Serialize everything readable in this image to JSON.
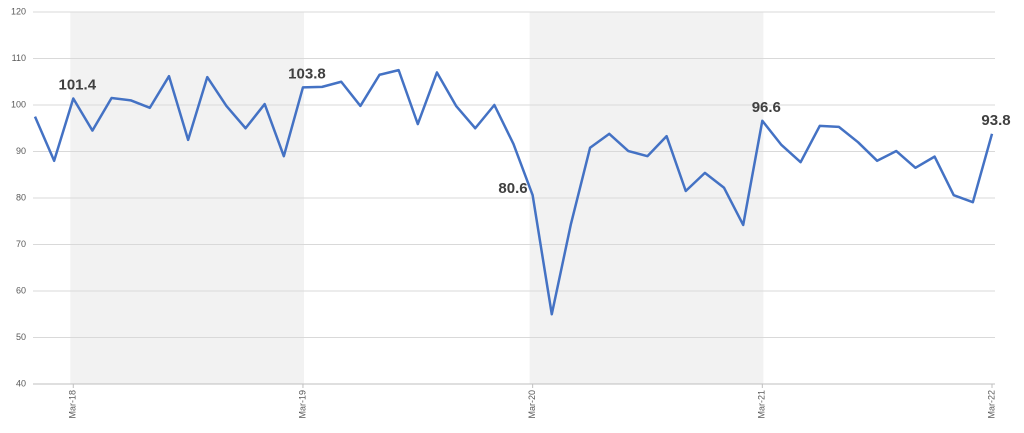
{
  "chart_data": {
    "type": "line",
    "categories": [
      null,
      null,
      "Mar-18",
      null,
      null,
      null,
      null,
      null,
      null,
      null,
      null,
      null,
      null,
      null,
      "Mar-19",
      null,
      null,
      null,
      null,
      null,
      null,
      null,
      null,
      null,
      null,
      null,
      "Mar-20",
      null,
      null,
      null,
      null,
      null,
      null,
      null,
      null,
      null,
      null,
      null,
      "Mar-21",
      null,
      null,
      null,
      null,
      null,
      null,
      null,
      null,
      null,
      null,
      null,
      "Mar-22"
    ],
    "series": [
      {
        "color": "#4472c4",
        "values": [
          97.5,
          88,
          101.4,
          94.5,
          101.5,
          101,
          99.4,
          106.2,
          92.5,
          106,
          99.8,
          95,
          100.2,
          89,
          103.8,
          103.9,
          105,
          99.8,
          106.5,
          107.5,
          95.9,
          107,
          99.8,
          95,
          100,
          91.6,
          80.6,
          55,
          74.4,
          90.8,
          93.8,
          90.1,
          89,
          93.3,
          81.5,
          85.4,
          82.2,
          74.2,
          96.6,
          91.4,
          87.7,
          95.5,
          95.3,
          92,
          88,
          90.1,
          86.5,
          88.9,
          80.6,
          79.1,
          93.8
        ]
      }
    ],
    "data_labels_at": [
      2,
      14,
      26,
      38,
      50
    ],
    "shaded_bands": [
      [
        2,
        14
      ],
      [
        26,
        38
      ]
    ],
    "shade_color": "#f2f2f2",
    "ylim": [
      40,
      120
    ],
    "yticks": [
      40,
      50,
      60,
      70,
      80,
      90,
      100,
      110,
      120
    ],
    "grid": true
  }
}
